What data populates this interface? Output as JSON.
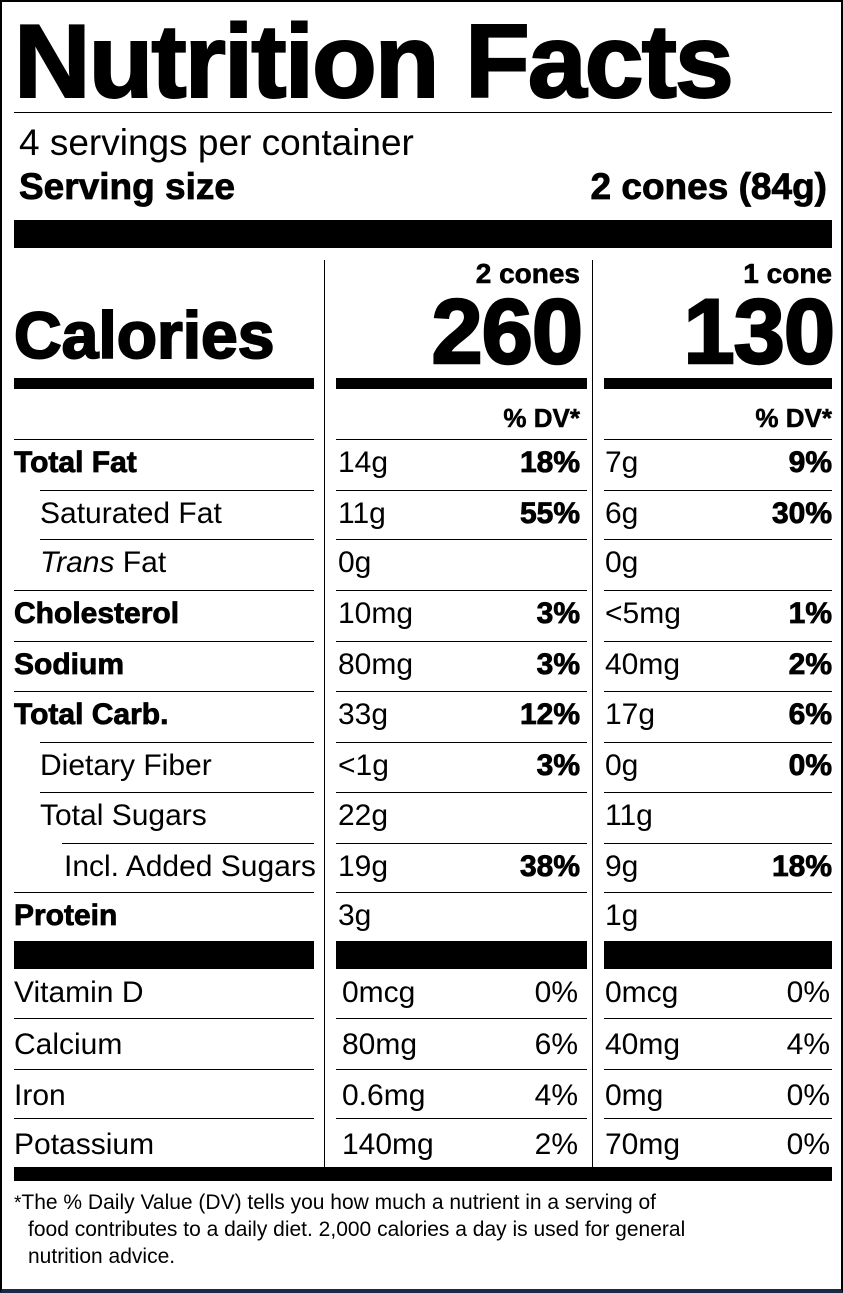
{
  "title": "Nutrition Facts",
  "servings_per_container": "4 servings per container",
  "serving_size_label": "Serving size",
  "serving_size_value": "2 cones (84g)",
  "calories_label": "Calories",
  "columns": [
    {
      "header": "2 cones",
      "calories": "260",
      "dv_header": "% DV*"
    },
    {
      "header": "1 cone",
      "calories": "130",
      "dv_header": "% DV*"
    }
  ],
  "nutrients": [
    {
      "name": "Total Fat",
      "bold": true,
      "indent": 0,
      "col1_amount": "14g",
      "col1_dv": "18%",
      "col2_amount": "7g",
      "col2_dv": "9%"
    },
    {
      "name": "Saturated Fat",
      "bold": false,
      "indent": 1,
      "col1_amount": "11g",
      "col1_dv": "55%",
      "col2_amount": "6g",
      "col2_dv": "30%"
    },
    {
      "name_italic": "Trans",
      "name": " Fat",
      "bold": false,
      "indent": 1,
      "col1_amount": "0g",
      "col1_dv": "",
      "col2_amount": "0g",
      "col2_dv": ""
    },
    {
      "name": "Cholesterol",
      "bold": true,
      "indent": 0,
      "col1_amount": "10mg",
      "col1_dv": "3%",
      "col2_amount": "<5mg",
      "col2_dv": "1%"
    },
    {
      "name": "Sodium",
      "bold": true,
      "indent": 0,
      "col1_amount": "80mg",
      "col1_dv": "3%",
      "col2_amount": "40mg",
      "col2_dv": "2%"
    },
    {
      "name": "Total Carb.",
      "bold": true,
      "indent": 0,
      "col1_amount": "33g",
      "col1_dv": "12%",
      "col2_amount": "17g",
      "col2_dv": "6%"
    },
    {
      "name": "Dietary Fiber",
      "bold": false,
      "indent": 1,
      "col1_amount": "<1g",
      "col1_dv": "3%",
      "col2_amount": "0g",
      "col2_dv": "0%"
    },
    {
      "name": "Total Sugars",
      "bold": false,
      "indent": 1,
      "col1_amount": "22g",
      "col1_dv": "",
      "col2_amount": "11g",
      "col2_dv": ""
    },
    {
      "name": "Incl. Added Sugars",
      "bold": false,
      "indent": 2,
      "col1_amount": "19g",
      "col1_dv": "38%",
      "col2_amount": "9g",
      "col2_dv": "18%"
    },
    {
      "name": "Protein",
      "bold": true,
      "indent": 0,
      "col1_amount": "3g",
      "col1_dv": "",
      "col2_amount": "1g",
      "col2_dv": ""
    }
  ],
  "vitamins": [
    {
      "name": "Vitamin D",
      "col1_amount": "0mcg",
      "col1_dv": "0%",
      "col2_amount": "0mcg",
      "col2_dv": "0%"
    },
    {
      "name": "Calcium",
      "col1_amount": "80mg",
      "col1_dv": "6%",
      "col2_amount": "40mg",
      "col2_dv": "4%"
    },
    {
      "name": "Iron",
      "col1_amount": "0.6mg",
      "col1_dv": "4%",
      "col2_amount": "0mg",
      "col2_dv": "0%"
    },
    {
      "name": "Potassium",
      "col1_amount": "140mg",
      "col1_dv": "2%",
      "col2_amount": "70mg",
      "col2_dv": "0%"
    }
  ],
  "footnote": {
    "star": "*",
    "line1": "The % Daily Value (DV) tells you how much a nutrient in a serving of",
    "line2": "food contributes to a daily diet. 2,000 calories a day is used for general",
    "line3": "nutrition advice."
  }
}
